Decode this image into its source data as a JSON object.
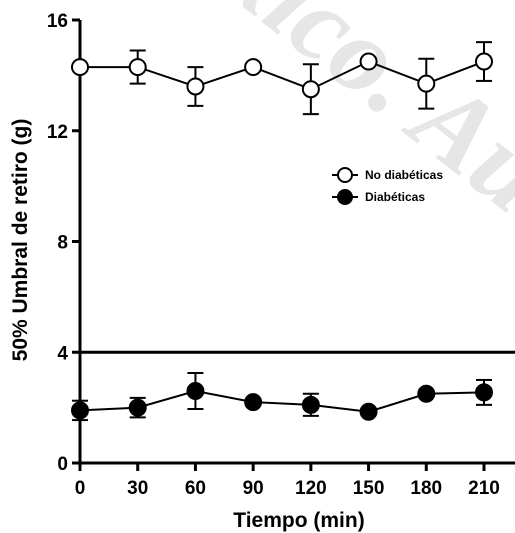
{
  "watermark": "exico. Autónoma",
  "chart_data": {
    "type": "line",
    "xlabel": "Tiempo (min)",
    "ylabel": "50% Umbral de retiro (g)",
    "xlim": [
      0,
      210
    ],
    "ylim": [
      0,
      16
    ],
    "x": [
      0,
      30,
      60,
      90,
      120,
      150,
      180,
      210
    ],
    "x_ticks": [
      0,
      30,
      60,
      90,
      120,
      150,
      180,
      210
    ],
    "y_ticks": [
      0,
      4,
      8,
      12,
      16
    ],
    "reference_line": 4,
    "legend_position": "right",
    "series": [
      {
        "name": "No diabéticas",
        "marker": "open-circle",
        "values": [
          14.3,
          14.3,
          13.6,
          14.3,
          13.5,
          14.5,
          13.7,
          14.5
        ],
        "errors": [
          0.0,
          0.6,
          0.7,
          0.0,
          0.9,
          0.0,
          0.9,
          0.7
        ]
      },
      {
        "name": "Diabéticas",
        "marker": "filled-circle",
        "values": [
          1.9,
          2.0,
          2.6,
          2.2,
          2.1,
          1.85,
          2.5,
          2.55
        ],
        "errors": [
          0.35,
          0.35,
          0.65,
          0.0,
          0.4,
          0.0,
          0.0,
          0.45
        ]
      }
    ]
  }
}
